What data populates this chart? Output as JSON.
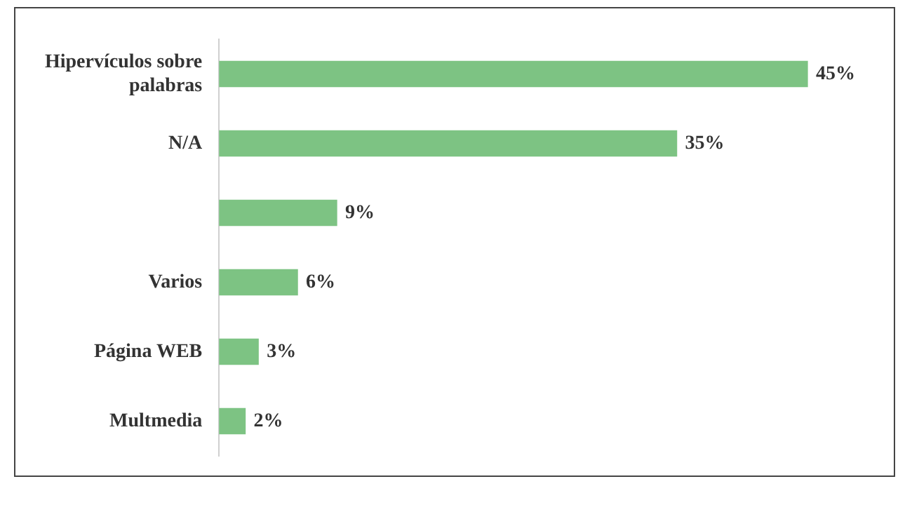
{
  "chart_data": {
    "type": "bar",
    "orientation": "horizontal",
    "categories": [
      "Hipervículos sobre palabras",
      "N/A",
      null,
      "Varios",
      "Página WEB",
      "Multmedia"
    ],
    "values": [
      45,
      35,
      9,
      6,
      3,
      2
    ],
    "value_labels": [
      "45%",
      "35%",
      "9%",
      "6%",
      "3%",
      "2%"
    ],
    "color": "#7dc383",
    "legend": false,
    "tick_labels": "y"
  }
}
